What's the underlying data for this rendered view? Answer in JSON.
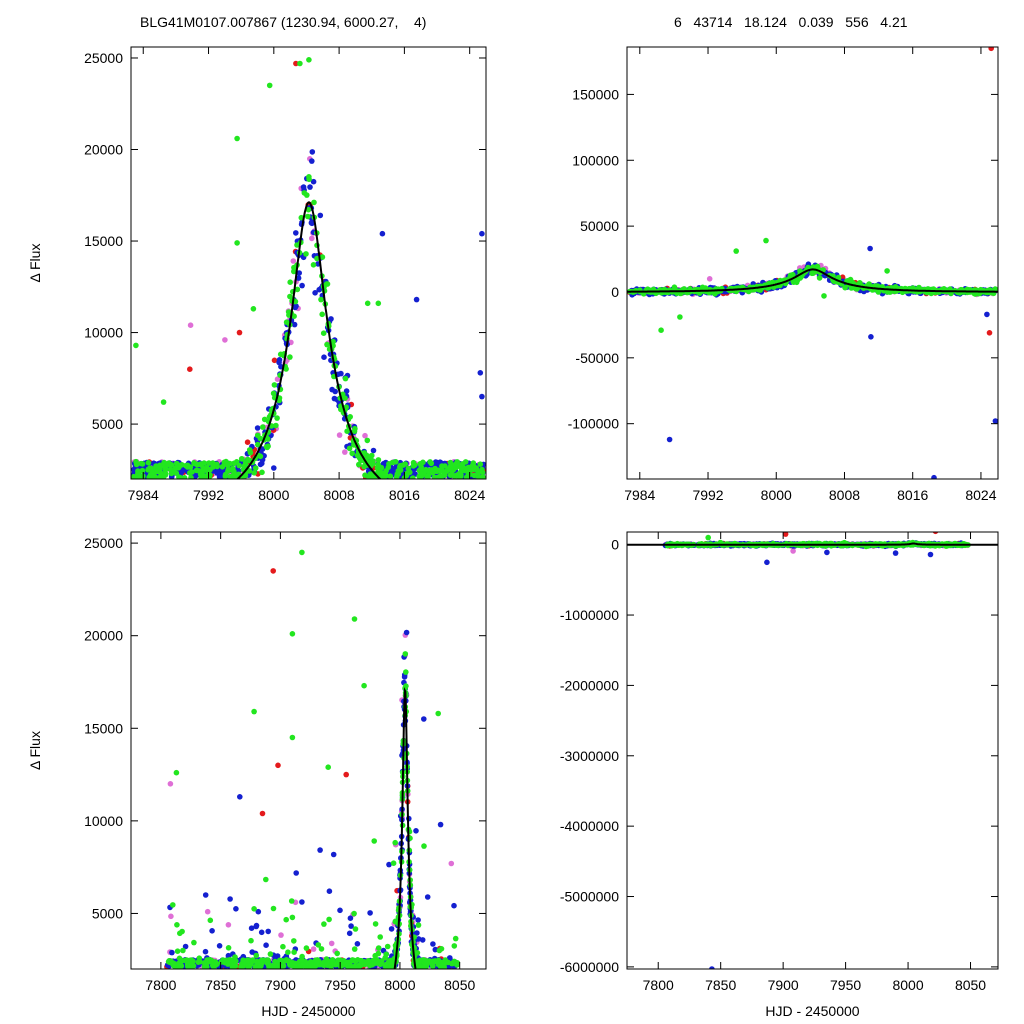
{
  "header": {
    "left": "BLG41M0107.007867 (1230.94, 6000.27,    4)",
    "right": "6   43714   18.124   0.039   556   4.21"
  },
  "colors": {
    "red": "#e41a1c",
    "violet": "#df6fd6",
    "green": "#22e61f",
    "blue": "#1420d0",
    "model": "#000000"
  },
  "model": {
    "t0": 8004.3,
    "tE": 10.6,
    "u0": 0.2,
    "fs": 4200,
    "base": 0
  },
  "chart_data": [
    {
      "id": "top-left",
      "type": "scatter",
      "ylabel": "Δ Flux",
      "xlabel": "",
      "xlim": [
        7982.5,
        8026
      ],
      "ylim": [
        2000,
        25600
      ],
      "xticks": [
        7984,
        7992,
        8000,
        8008,
        8016,
        8024
      ],
      "yticks": [
        5000,
        10000,
        15000,
        20000,
        25000
      ],
      "ytick_labels": [
        "5000",
        "10000",
        "15000",
        "20000",
        "25000"
      ],
      "grid": false,
      "series_markers": "filled circles by colour",
      "outliers": [
        {
          "x": 7983.1,
          "y": 9300,
          "color": "green"
        },
        {
          "x": 7986.5,
          "y": 6200,
          "color": "green"
        },
        {
          "x": 7989.8,
          "y": 10400,
          "color": "violet"
        },
        {
          "x": 7989.7,
          "y": 8000,
          "color": "red"
        },
        {
          "x": 7994,
          "y": 9600,
          "color": "violet"
        },
        {
          "x": 7995.5,
          "y": 20600,
          "color": "green"
        },
        {
          "x": 7995.5,
          "y": 14900,
          "color": "green"
        },
        {
          "x": 7995.8,
          "y": 10000,
          "color": "red"
        },
        {
          "x": 7997.5,
          "y": 11300,
          "color": "green"
        },
        {
          "x": 7999.5,
          "y": 23500,
          "color": "green"
        },
        {
          "x": 8000,
          "y": 2600,
          "color": "blue"
        },
        {
          "x": 8002.7,
          "y": 24700,
          "color": "red"
        },
        {
          "x": 8003.2,
          "y": 24700,
          "color": "green"
        },
        {
          "x": 8004.3,
          "y": 24900,
          "color": "green"
        },
        {
          "x": 8005.7,
          "y": 16400,
          "color": "blue"
        },
        {
          "x": 8011.5,
          "y": 11600,
          "color": "green"
        },
        {
          "x": 8012.8,
          "y": 11600,
          "color": "green"
        },
        {
          "x": 8013.3,
          "y": 15400,
          "color": "blue"
        },
        {
          "x": 8017.5,
          "y": 11800,
          "color": "blue"
        },
        {
          "x": 8025.5,
          "y": 15400,
          "color": "blue"
        },
        {
          "x": 8025.3,
          "y": 7800,
          "color": "blue"
        },
        {
          "x": 8025.5,
          "y": 6500,
          "color": "blue"
        }
      ]
    },
    {
      "id": "top-right",
      "type": "scatter",
      "ylabel": "",
      "xlabel": "",
      "xlim": [
        7982.5,
        8026
      ],
      "ylim": [
        -142000,
        186000
      ],
      "xticks": [
        7984,
        7992,
        8000,
        8008,
        8016,
        8024
      ],
      "yticks": [
        -100000,
        -50000,
        0,
        50000,
        100000,
        150000
      ],
      "ytick_labels": [
        "-100000",
        "-50000",
        "0",
        "50000",
        "100000",
        "150000"
      ],
      "grid": false,
      "outliers": [
        {
          "x": 7986.5,
          "y": -29000,
          "color": "green"
        },
        {
          "x": 7987.5,
          "y": -112000,
          "color": "blue"
        },
        {
          "x": 7988.7,
          "y": -19000,
          "color": "green"
        },
        {
          "x": 7992.2,
          "y": 10000,
          "color": "violet"
        },
        {
          "x": 7995.3,
          "y": 31000,
          "color": "green"
        },
        {
          "x": 7998.8,
          "y": 39000,
          "color": "green"
        },
        {
          "x": 8005.6,
          "y": -3000,
          "color": "green"
        },
        {
          "x": 8011,
          "y": 33000,
          "color": "blue"
        },
        {
          "x": 8011.1,
          "y": -34000,
          "color": "blue"
        },
        {
          "x": 8013,
          "y": 16000,
          "color": "green"
        },
        {
          "x": 8018.5,
          "y": -141000,
          "color": "blue"
        },
        {
          "x": 8025.2,
          "y": 185000,
          "color": "red"
        },
        {
          "x": 8025,
          "y": -31000,
          "color": "red"
        },
        {
          "x": 8025.7,
          "y": -98000,
          "color": "blue"
        },
        {
          "x": 8024.7,
          "y": -17000,
          "color": "blue"
        }
      ]
    },
    {
      "id": "bottom-left",
      "type": "scatter",
      "ylabel": "Δ Flux",
      "xlabel": "HJD - 2450000",
      "xlim": [
        7775,
        8072
      ],
      "ylim": [
        2000,
        25600
      ],
      "xticks": [
        7800,
        7850,
        7900,
        7950,
        8000,
        8050
      ],
      "yticks": [
        5000,
        10000,
        15000,
        20000,
        25000
      ],
      "ytick_labels": [
        "5000",
        "10000",
        "15000",
        "20000",
        "25000"
      ],
      "grid": false,
      "outliers": [
        {
          "x": 7808,
          "y": 12000,
          "color": "violet"
        },
        {
          "x": 7813,
          "y": 12600,
          "color": "green"
        },
        {
          "x": 7894,
          "y": 23500,
          "color": "red"
        },
        {
          "x": 7918,
          "y": 24500,
          "color": "green"
        },
        {
          "x": 7910,
          "y": 20100,
          "color": "green"
        },
        {
          "x": 7962,
          "y": 20900,
          "color": "green"
        },
        {
          "x": 7878,
          "y": 15900,
          "color": "green"
        },
        {
          "x": 7910,
          "y": 14500,
          "color": "green"
        },
        {
          "x": 7955,
          "y": 12500,
          "color": "red"
        },
        {
          "x": 7898,
          "y": 13000,
          "color": "red"
        },
        {
          "x": 7940,
          "y": 12900,
          "color": "green"
        },
        {
          "x": 7970,
          "y": 17300,
          "color": "green"
        },
        {
          "x": 8020,
          "y": 15500,
          "color": "blue"
        },
        {
          "x": 8032,
          "y": 15800,
          "color": "green"
        },
        {
          "x": 7866,
          "y": 11300,
          "color": "blue"
        },
        {
          "x": 7885,
          "y": 10400,
          "color": "red"
        },
        {
          "x": 8034,
          "y": 9800,
          "color": "blue"
        },
        {
          "x": 8043,
          "y": 7700,
          "color": "violet"
        }
      ]
    },
    {
      "id": "bottom-right",
      "type": "scatter",
      "ylabel": "",
      "xlabel": "HJD - 2450000",
      "xlim": [
        7775,
        8072
      ],
      "ylim": [
        -6030000,
        180000
      ],
      "xticks": [
        7800,
        7850,
        7900,
        7950,
        8000,
        8050
      ],
      "yticks": [
        -6000000,
        -5000000,
        -4000000,
        -3000000,
        -2000000,
        -1000000,
        0
      ],
      "ytick_labels": [
        "-6000000",
        "-5000000",
        "-4000000",
        "-3000000",
        "-2000000",
        "-1000000",
        "0"
      ],
      "grid": false,
      "outliers": [
        {
          "x": 7843,
          "y": -6030000,
          "color": "blue"
        },
        {
          "x": 7887,
          "y": -250000,
          "color": "blue"
        },
        {
          "x": 7902,
          "y": 150000,
          "color": "red"
        },
        {
          "x": 8022,
          "y": 190000,
          "color": "red"
        },
        {
          "x": 7840,
          "y": 100000,
          "color": "green"
        },
        {
          "x": 7935,
          "y": -110000,
          "color": "blue"
        },
        {
          "x": 7990,
          "y": -120000,
          "color": "blue"
        },
        {
          "x": 8018,
          "y": -140000,
          "color": "blue"
        },
        {
          "x": 7908,
          "y": -90000,
          "color": "violet"
        }
      ]
    }
  ]
}
